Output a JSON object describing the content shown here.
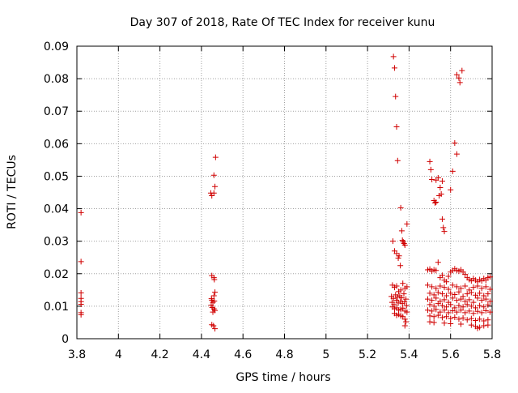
{
  "chart_data": {
    "type": "scatter",
    "title": "Day 307 of 2018, Rate Of TEC Index for receiver kunu",
    "xlabel": "GPS time / hours",
    "ylabel": "ROTI / TECUs",
    "xlim": [
      3.8,
      5.8
    ],
    "ylim": [
      0,
      0.09
    ],
    "grid": true,
    "marker_color": "#d00000",
    "x_ticks": [
      "3.8",
      "4",
      "4.2",
      "4.4",
      "4.6",
      "4.8",
      "5",
      "5.2",
      "5.4",
      "5.6",
      "5.8"
    ],
    "y_ticks": [
      "0",
      "0.01",
      "0.02",
      "0.03",
      "0.04",
      "0.05",
      "0.06",
      "0.07",
      "0.08",
      "0.09"
    ],
    "series": [
      {
        "name": "ROTI",
        "points": [
          [
            3.82,
            0.0388
          ],
          [
            3.82,
            0.0237
          ],
          [
            3.82,
            0.0141
          ],
          [
            3.82,
            0.0124
          ],
          [
            3.82,
            0.0114
          ],
          [
            3.82,
            0.0106
          ],
          [
            3.82,
            0.008
          ],
          [
            3.82,
            0.0074
          ],
          [
            4.445,
            0.0448
          ],
          [
            4.45,
            0.044
          ],
          [
            4.46,
            0.0448
          ],
          [
            4.46,
            0.0503
          ],
          [
            4.465,
            0.0468
          ],
          [
            4.468,
            0.0558
          ],
          [
            4.45,
            0.0194
          ],
          [
            4.46,
            0.0188
          ],
          [
            4.462,
            0.0182
          ],
          [
            4.465,
            0.0143
          ],
          [
            4.46,
            0.0132
          ],
          [
            4.448,
            0.0123
          ],
          [
            4.45,
            0.0118
          ],
          [
            4.455,
            0.0112
          ],
          [
            4.462,
            0.0116
          ],
          [
            4.447,
            0.0103
          ],
          [
            4.452,
            0.0096
          ],
          [
            4.46,
            0.0092
          ],
          [
            4.465,
            0.0087
          ],
          [
            4.455,
            0.0082
          ],
          [
            4.45,
            0.0043
          ],
          [
            4.458,
            0.004
          ],
          [
            4.465,
            0.0031
          ],
          [
            5.325,
            0.0868
          ],
          [
            5.33,
            0.0833
          ],
          [
            5.335,
            0.0745
          ],
          [
            5.34,
            0.0652
          ],
          [
            5.345,
            0.0548
          ],
          [
            5.36,
            0.0403
          ],
          [
            5.39,
            0.0353
          ],
          [
            5.365,
            0.0332
          ],
          [
            5.368,
            0.0303
          ],
          [
            5.372,
            0.0298
          ],
          [
            5.376,
            0.0293
          ],
          [
            5.38,
            0.0288
          ],
          [
            5.322,
            0.03
          ],
          [
            5.33,
            0.027
          ],
          [
            5.34,
            0.0262
          ],
          [
            5.348,
            0.0248
          ],
          [
            5.352,
            0.0255
          ],
          [
            5.358,
            0.0225
          ],
          [
            5.32,
            0.0165
          ],
          [
            5.33,
            0.0158
          ],
          [
            5.34,
            0.0162
          ],
          [
            5.35,
            0.0145
          ],
          [
            5.36,
            0.015
          ],
          [
            5.37,
            0.017
          ],
          [
            5.38,
            0.0155
          ],
          [
            5.39,
            0.016
          ],
          [
            5.315,
            0.013
          ],
          [
            5.325,
            0.0124
          ],
          [
            5.335,
            0.0135
          ],
          [
            5.345,
            0.0128
          ],
          [
            5.355,
            0.0132
          ],
          [
            5.365,
            0.0126
          ],
          [
            5.375,
            0.0138
          ],
          [
            5.385,
            0.0122
          ],
          [
            5.318,
            0.0112
          ],
          [
            5.328,
            0.0105
          ],
          [
            5.338,
            0.0118
          ],
          [
            5.348,
            0.011
          ],
          [
            5.358,
            0.0115
          ],
          [
            5.368,
            0.0108
          ],
          [
            5.378,
            0.0113
          ],
          [
            5.388,
            0.0102
          ],
          [
            5.32,
            0.0098
          ],
          [
            5.33,
            0.0092
          ],
          [
            5.34,
            0.0095
          ],
          [
            5.35,
            0.0088
          ],
          [
            5.36,
            0.009
          ],
          [
            5.37,
            0.0094
          ],
          [
            5.38,
            0.0085
          ],
          [
            5.39,
            0.0082
          ],
          [
            5.33,
            0.0078
          ],
          [
            5.34,
            0.0072
          ],
          [
            5.35,
            0.0075
          ],
          [
            5.36,
            0.007
          ],
          [
            5.37,
            0.0068
          ],
          [
            5.38,
            0.006
          ],
          [
            5.385,
            0.0052
          ],
          [
            5.38,
            0.004
          ],
          [
            5.5,
            0.0545
          ],
          [
            5.505,
            0.052
          ],
          [
            5.51,
            0.049
          ],
          [
            5.53,
            0.0488
          ],
          [
            5.54,
            0.0495
          ],
          [
            5.55,
            0.0465
          ],
          [
            5.56,
            0.0485
          ],
          [
            5.52,
            0.0425
          ],
          [
            5.525,
            0.0418
          ],
          [
            5.53,
            0.042
          ],
          [
            5.545,
            0.044
          ],
          [
            5.555,
            0.0445
          ],
          [
            5.56,
            0.0368
          ],
          [
            5.565,
            0.0342
          ],
          [
            5.57,
            0.033
          ],
          [
            5.6,
            0.0458
          ],
          [
            5.61,
            0.0515
          ],
          [
            5.62,
            0.0602
          ],
          [
            5.63,
            0.0568
          ],
          [
            5.63,
            0.0812
          ],
          [
            5.64,
            0.0802
          ],
          [
            5.645,
            0.0788
          ],
          [
            5.655,
            0.0825
          ],
          [
            5.49,
            0.0212
          ],
          [
            5.5,
            0.0214
          ],
          [
            5.51,
            0.0208
          ],
          [
            5.52,
            0.0212
          ],
          [
            5.53,
            0.021
          ],
          [
            5.54,
            0.0235
          ],
          [
            5.55,
            0.0188
          ],
          [
            5.56,
            0.0195
          ],
          [
            5.57,
            0.018
          ],
          [
            5.58,
            0.0175
          ],
          [
            5.59,
            0.0192
          ],
          [
            5.6,
            0.0205
          ],
          [
            5.61,
            0.021
          ],
          [
            5.62,
            0.0215
          ],
          [
            5.63,
            0.021
          ],
          [
            5.64,
            0.0208
          ],
          [
            5.65,
            0.0212
          ],
          [
            5.66,
            0.0205
          ],
          [
            5.67,
            0.0198
          ],
          [
            5.68,
            0.0188
          ],
          [
            5.69,
            0.0182
          ],
          [
            5.7,
            0.0178
          ],
          [
            5.71,
            0.0185
          ],
          [
            5.72,
            0.018
          ],
          [
            5.73,
            0.0175
          ],
          [
            5.74,
            0.0182
          ],
          [
            5.75,
            0.0178
          ],
          [
            5.76,
            0.0185
          ],
          [
            5.77,
            0.018
          ],
          [
            5.78,
            0.0188
          ],
          [
            5.79,
            0.019
          ],
          [
            5.49,
            0.0165
          ],
          [
            5.51,
            0.016
          ],
          [
            5.53,
            0.0155
          ],
          [
            5.55,
            0.0162
          ],
          [
            5.57,
            0.0158
          ],
          [
            5.59,
            0.0152
          ],
          [
            5.61,
            0.0165
          ],
          [
            5.63,
            0.016
          ],
          [
            5.65,
            0.0155
          ],
          [
            5.67,
            0.0162
          ],
          [
            5.69,
            0.015
          ],
          [
            5.71,
            0.0158
          ],
          [
            5.73,
            0.0162
          ],
          [
            5.75,
            0.0155
          ],
          [
            5.77,
            0.016
          ],
          [
            5.79,
            0.0152
          ],
          [
            5.5,
            0.014
          ],
          [
            5.52,
            0.0135
          ],
          [
            5.54,
            0.0142
          ],
          [
            5.56,
            0.0138
          ],
          [
            5.58,
            0.0132
          ],
          [
            5.6,
            0.014
          ],
          [
            5.62,
            0.0136
          ],
          [
            5.64,
            0.0144
          ],
          [
            5.66,
            0.013
          ],
          [
            5.68,
            0.0138
          ],
          [
            5.7,
            0.0142
          ],
          [
            5.72,
            0.0134
          ],
          [
            5.74,
            0.014
          ],
          [
            5.76,
            0.0132
          ],
          [
            5.78,
            0.0138
          ],
          [
            5.49,
            0.0122
          ],
          [
            5.51,
            0.0118
          ],
          [
            5.53,
            0.0125
          ],
          [
            5.55,
            0.0115
          ],
          [
            5.57,
            0.012
          ],
          [
            5.59,
            0.0112
          ],
          [
            5.61,
            0.0125
          ],
          [
            5.63,
            0.0118
          ],
          [
            5.65,
            0.0122
          ],
          [
            5.67,
            0.0115
          ],
          [
            5.69,
            0.012
          ],
          [
            5.71,
            0.0112
          ],
          [
            5.73,
            0.0125
          ],
          [
            5.75,
            0.0118
          ],
          [
            5.77,
            0.0122
          ],
          [
            5.79,
            0.0115
          ],
          [
            5.5,
            0.0105
          ],
          [
            5.52,
            0.01
          ],
          [
            5.54,
            0.0108
          ],
          [
            5.56,
            0.0102
          ],
          [
            5.58,
            0.0098
          ],
          [
            5.6,
            0.0105
          ],
          [
            5.62,
            0.0095
          ],
          [
            5.64,
            0.0102
          ],
          [
            5.66,
            0.0098
          ],
          [
            5.68,
            0.0105
          ],
          [
            5.7,
            0.01
          ],
          [
            5.72,
            0.0095
          ],
          [
            5.74,
            0.0102
          ],
          [
            5.76,
            0.0098
          ],
          [
            5.78,
            0.0104
          ],
          [
            5.49,
            0.0088
          ],
          [
            5.51,
            0.0085
          ],
          [
            5.53,
            0.009
          ],
          [
            5.55,
            0.0082
          ],
          [
            5.57,
            0.0088
          ],
          [
            5.59,
            0.008
          ],
          [
            5.61,
            0.0086
          ],
          [
            5.63,
            0.0082
          ],
          [
            5.65,
            0.0088
          ],
          [
            5.67,
            0.008
          ],
          [
            5.69,
            0.0085
          ],
          [
            5.71,
            0.0078
          ],
          [
            5.73,
            0.0084
          ],
          [
            5.75,
            0.008
          ],
          [
            5.77,
            0.0086
          ],
          [
            5.79,
            0.0082
          ],
          [
            5.5,
            0.007
          ],
          [
            5.52,
            0.0068
          ],
          [
            5.54,
            0.0072
          ],
          [
            5.56,
            0.0065
          ],
          [
            5.58,
            0.0068
          ],
          [
            5.6,
            0.0062
          ],
          [
            5.62,
            0.0066
          ],
          [
            5.64,
            0.006
          ],
          [
            5.66,
            0.0064
          ],
          [
            5.68,
            0.0058
          ],
          [
            5.7,
            0.0062
          ],
          [
            5.72,
            0.0056
          ],
          [
            5.74,
            0.006
          ],
          [
            5.76,
            0.0055
          ],
          [
            5.78,
            0.0058
          ],
          [
            5.5,
            0.0052
          ],
          [
            5.52,
            0.005
          ],
          [
            5.57,
            0.0048
          ],
          [
            5.6,
            0.0046
          ],
          [
            5.65,
            0.0045
          ],
          [
            5.7,
            0.0042
          ],
          [
            5.72,
            0.0038
          ],
          [
            5.74,
            0.0035
          ],
          [
            5.76,
            0.004
          ],
          [
            5.78,
            0.0042
          ],
          [
            5.73,
            0.0032
          ]
        ]
      }
    ]
  }
}
